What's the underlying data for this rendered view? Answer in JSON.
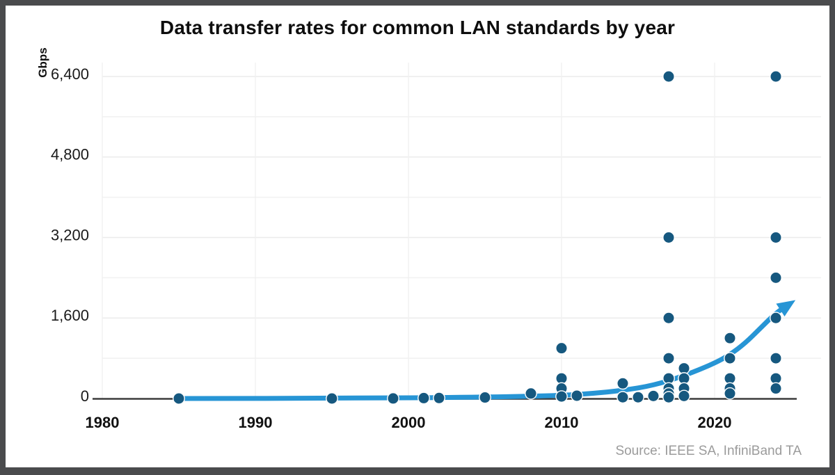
{
  "chart_data": {
    "type": "scatter",
    "title": "Data transfer rates for common LAN standards by year",
    "ylabel": "Gbps",
    "xlabel": "",
    "source": "Source: IEEE SA, InfiniBand TA",
    "grid": "on",
    "xlim": [
      1979.3,
      2026
    ],
    "ylim": [
      0,
      6400
    ],
    "y_major_ticks": [
      0,
      1600,
      3200,
      4800,
      6400
    ],
    "y_tick_labels": [
      "0",
      "1,600",
      "3,200",
      "4,800",
      "6,400"
    ],
    "y_minor_step": 800,
    "x_ticks": [
      1980,
      1990,
      2000,
      2010,
      2020
    ],
    "x_tick_labels": [
      "1980",
      "1990",
      "2000",
      "2010",
      "2020"
    ],
    "points": [
      {
        "year": 1985,
        "gbps": 0.01
      },
      {
        "year": 1995,
        "gbps": 0.1
      },
      {
        "year": 1999,
        "gbps": 1
      },
      {
        "year": 2001,
        "gbps": 8
      },
      {
        "year": 2002,
        "gbps": 10
      },
      {
        "year": 2005,
        "gbps": 20
      },
      {
        "year": 2008,
        "gbps": 100
      },
      {
        "year": 2010,
        "gbps": 1000
      },
      {
        "year": 2010,
        "gbps": 400
      },
      {
        "year": 2010,
        "gbps": 200
      },
      {
        "year": 2010,
        "gbps": 40
      },
      {
        "year": 2011,
        "gbps": 56
      },
      {
        "year": 2014,
        "gbps": 300
      },
      {
        "year": 2014,
        "gbps": 25
      },
      {
        "year": 2015,
        "gbps": 25
      },
      {
        "year": 2016,
        "gbps": 50
      },
      {
        "year": 2017,
        "gbps": 6400
      },
      {
        "year": 2017,
        "gbps": 3200
      },
      {
        "year": 2017,
        "gbps": 1600
      },
      {
        "year": 2017,
        "gbps": 800
      },
      {
        "year": 2017,
        "gbps": 400
      },
      {
        "year": 2017,
        "gbps": 200
      },
      {
        "year": 2017,
        "gbps": 100
      },
      {
        "year": 2017,
        "gbps": 25
      },
      {
        "year": 2018,
        "gbps": 600
      },
      {
        "year": 2018,
        "gbps": 400
      },
      {
        "year": 2018,
        "gbps": 200
      },
      {
        "year": 2018,
        "gbps": 50
      },
      {
        "year": 2021,
        "gbps": 1200
      },
      {
        "year": 2021,
        "gbps": 800
      },
      {
        "year": 2021,
        "gbps": 400
      },
      {
        "year": 2021,
        "gbps": 200
      },
      {
        "year": 2021,
        "gbps": 100
      },
      {
        "year": 2024,
        "gbps": 6400
      },
      {
        "year": 2024,
        "gbps": 3200
      },
      {
        "year": 2024,
        "gbps": 2400
      },
      {
        "year": 2024,
        "gbps": 1600
      },
      {
        "year": 2024,
        "gbps": 800
      },
      {
        "year": 2024,
        "gbps": 400
      },
      {
        "year": 2024,
        "gbps": 200
      }
    ],
    "trend_line": [
      {
        "year": 1985,
        "gbps": 0
      },
      {
        "year": 1995,
        "gbps": 3
      },
      {
        "year": 2005,
        "gbps": 25
      },
      {
        "year": 2010,
        "gbps": 60
      },
      {
        "year": 2012,
        "gbps": 100
      },
      {
        "year": 2014,
        "gbps": 160
      },
      {
        "year": 2016,
        "gbps": 260
      },
      {
        "year": 2018,
        "gbps": 450
      },
      {
        "year": 2020,
        "gbps": 700
      },
      {
        "year": 2021,
        "gbps": 870
      },
      {
        "year": 2022,
        "gbps": 1100
      },
      {
        "year": 2023,
        "gbps": 1400
      },
      {
        "year": 2024,
        "gbps": 1700
      },
      {
        "year": 2024.9,
        "gbps": 1880
      }
    ],
    "colors": {
      "dot": "#16587f",
      "trend": "#2795d5",
      "axis": "#3c3c3c",
      "grid_major": "#ebebeb",
      "grid_minor": "#f1f1f1",
      "frame": "#4a4b4d",
      "source_text": "#9b9b9b"
    }
  }
}
